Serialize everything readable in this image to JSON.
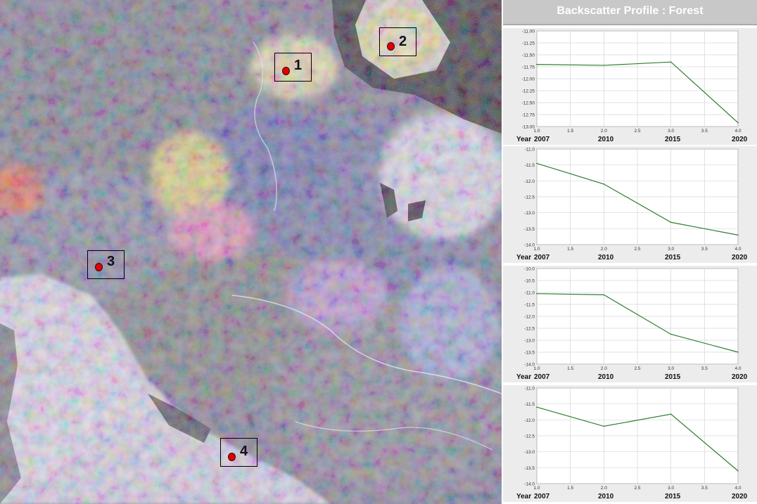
{
  "panel": {
    "title": "Backscatter Profile : Forest"
  },
  "map": {
    "markers": [
      {
        "label": "1"
      },
      {
        "label": "2"
      },
      {
        "label": "3"
      },
      {
        "label": "4"
      }
    ]
  },
  "colors": {
    "line": "#2e7d32",
    "grid": "#d6d6d6",
    "plot_bg": "#ffffff",
    "panel_bg": "#ececec",
    "axis": "#555555"
  },
  "chart_data": [
    {
      "type": "line",
      "x": [
        1.0,
        2.0,
        3.0,
        4.0
      ],
      "xlim": [
        1.0,
        4.0
      ],
      "xticks": [
        "1.0",
        "1.5",
        "2.0",
        "2.5",
        "3.0",
        "3.5",
        "4.0"
      ],
      "y": [
        -11.7,
        -11.72,
        -11.65,
        -12.92
      ],
      "ylim": [
        -13.0,
        -11.0
      ],
      "yticks": [
        "-11.00",
        "-11.25",
        "-11.50",
        "-11.75",
        "-12.00",
        "-12.25",
        "-12.50",
        "-12.75",
        "-13.00"
      ],
      "year_prefix": "Year",
      "years": [
        "2007",
        "2010",
        "2015",
        "2020"
      ],
      "grid": true
    },
    {
      "type": "line",
      "x": [
        1.0,
        2.0,
        3.0,
        4.0
      ],
      "xlim": [
        1.0,
        4.0
      ],
      "xticks": [
        "1.0",
        "1.5",
        "2.0",
        "2.5",
        "3.0",
        "3.5",
        "4.0"
      ],
      "y": [
        -11.45,
        -12.1,
        -13.3,
        -13.7
      ],
      "ylim": [
        -14.0,
        -11.0
      ],
      "yticks": [
        "-11.0",
        "-11.5",
        "-12.0",
        "-12.5",
        "-13.0",
        "-13.5",
        "-14.0"
      ],
      "year_prefix": "Year",
      "years": [
        "2007",
        "2010",
        "2015",
        "2020"
      ],
      "grid": true
    },
    {
      "type": "line",
      "x": [
        1.0,
        2.0,
        3.0,
        4.0
      ],
      "xlim": [
        1.0,
        4.0
      ],
      "xticks": [
        "1.0",
        "1.5",
        "2.0",
        "2.5",
        "3.0",
        "3.5",
        "4.0"
      ],
      "y": [
        -11.05,
        -11.1,
        -12.75,
        -13.5
      ],
      "ylim": [
        -14.0,
        -10.0
      ],
      "yticks": [
        "-10.0",
        "-10.5",
        "-11.0",
        "-11.5",
        "-12.0",
        "-12.5",
        "-13.0",
        "-13.5",
        "-14.0"
      ],
      "year_prefix": "Year",
      "years": [
        "2007",
        "2010",
        "2015",
        "2020"
      ],
      "grid": true
    },
    {
      "type": "line",
      "x": [
        1.0,
        2.0,
        3.0,
        4.0
      ],
      "xlim": [
        1.0,
        4.0
      ],
      "xticks": [
        "1.0",
        "1.5",
        "2.0",
        "2.5",
        "3.0",
        "3.5",
        "4.0"
      ],
      "y": [
        -11.6,
        -12.2,
        -11.82,
        -13.6
      ],
      "ylim": [
        -14.0,
        -11.0
      ],
      "yticks": [
        "-11.0",
        "-11.5",
        "-12.0",
        "-12.5",
        "-13.0",
        "-13.5",
        "-14.0"
      ],
      "year_prefix": "Year",
      "years": [
        "2007",
        "2010",
        "2015",
        "2020"
      ],
      "grid": true
    }
  ]
}
